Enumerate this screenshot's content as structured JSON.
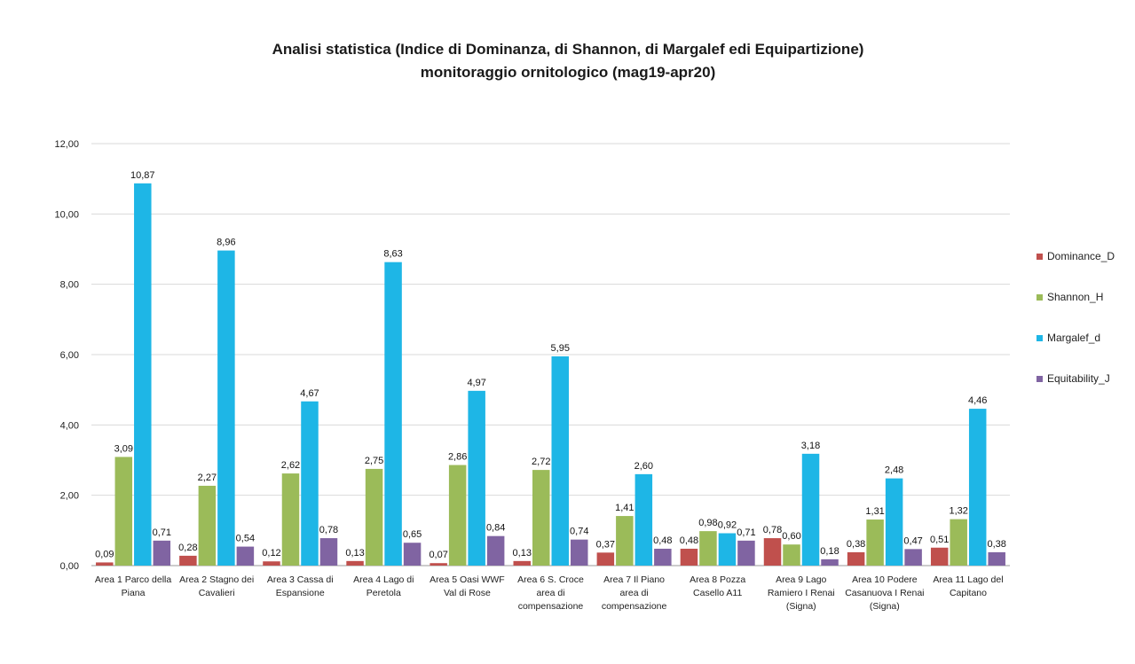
{
  "chart_data": {
    "type": "bar",
    "title": "Analisi statistica (Indice di Dominanza, di Shannon, di Margalef edi Equipartizione)",
    "subtitle": "monitoraggio ornitologico (mag19-apr20)",
    "categories": [
      [
        "Area 1 Parco della",
        "Piana"
      ],
      [
        "Area 2 Stagno dei",
        "Cavalieri"
      ],
      [
        "Area 3 Cassa di",
        "Espansione"
      ],
      [
        "Area 4 Lago di",
        "Peretola"
      ],
      [
        "Area 5 Oasi WWF",
        "Val di Rose"
      ],
      [
        "Area 6 S. Croce",
        "area di",
        "compensazione"
      ],
      [
        "Area 7 Il Piano",
        "area di",
        "compensazione"
      ],
      [
        "Area 8 Pozza",
        "Casello A11"
      ],
      [
        "Area 9 Lago",
        "Ramiero I Renai",
        "(Signa)"
      ],
      [
        "Area 10 Podere",
        "Casanuova I Renai",
        "(Signa)"
      ],
      [
        "Area 11  Lago del",
        "Capitano"
      ]
    ],
    "series": [
      {
        "name": "Dominance_D",
        "color": "#c0504d",
        "values": [
          0.09,
          0.28,
          0.12,
          0.13,
          0.07,
          0.13,
          0.37,
          0.48,
          0.78,
          0.38,
          0.51
        ],
        "labels": [
          "0,09",
          "0,28",
          "0,12",
          "0,13",
          "0,07",
          "0,13",
          "0,37",
          "0,48",
          "0,78",
          "0,38",
          "0,51"
        ]
      },
      {
        "name": "Shannon_H",
        "color": "#9bbb59",
        "values": [
          3.09,
          2.27,
          2.62,
          2.75,
          2.86,
          2.72,
          1.41,
          0.98,
          0.6,
          1.31,
          1.32
        ],
        "labels": [
          "3,09",
          "2,27",
          "2,62",
          "2,75",
          "2,86",
          "2,72",
          "1,41",
          "0,98",
          "0,60",
          "1,31",
          "1,32"
        ]
      },
      {
        "name": "Margalef_d",
        "color": "#1eb6e6",
        "values": [
          10.87,
          8.96,
          4.67,
          8.63,
          4.97,
          5.95,
          2.6,
          0.92,
          3.18,
          2.48,
          4.46
        ],
        "labels": [
          "10,87",
          "8,96",
          "4,67",
          "8,63",
          "4,97",
          "5,95",
          "2,60",
          "0,92",
          "3,18",
          "2,48",
          "4,46"
        ]
      },
      {
        "name": "Equitability_J",
        "color": "#8064a2",
        "values": [
          0.71,
          0.54,
          0.78,
          0.65,
          0.84,
          0.74,
          0.48,
          0.71,
          0.18,
          0.47,
          0.38
        ],
        "labels": [
          "0,71",
          "0,54",
          "0,78",
          "0,65",
          "0,84",
          "0,74",
          "0,48",
          "0,71",
          "0,18",
          "0,47",
          "0,38"
        ]
      }
    ],
    "ylim": [
      0,
      12
    ],
    "yticks": [
      "0,00",
      "2,00",
      "4,00",
      "6,00",
      "8,00",
      "10,00",
      "12,00"
    ],
    "grid": true,
    "legend": "right"
  }
}
